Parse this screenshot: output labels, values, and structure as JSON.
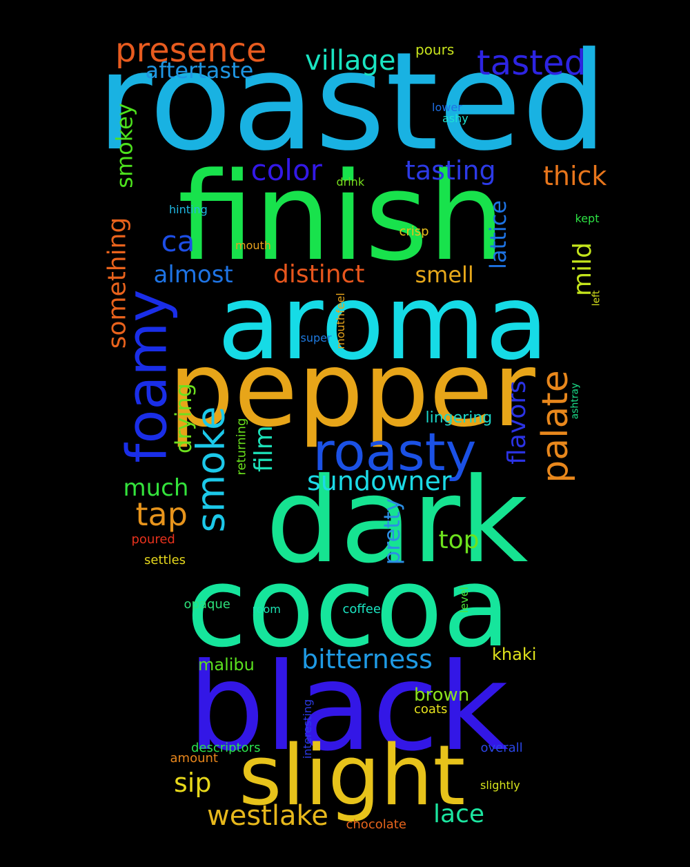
{
  "words": [
    {
      "text": "roasted",
      "color": "#19b2e2",
      "rot": 0
    },
    {
      "text": "finish",
      "color": "#18e24c",
      "rot": 0
    },
    {
      "text": "aroma",
      "color": "#16dbe6",
      "rot": 0
    },
    {
      "text": "pepper",
      "color": "#e7a519",
      "rot": 0
    },
    {
      "text": "dark",
      "color": "#16e391",
      "rot": 0
    },
    {
      "text": "cocoa",
      "color": "#16e59c",
      "rot": 0
    },
    {
      "text": "black",
      "color": "#3317e6",
      "rot": 0
    },
    {
      "text": "slight",
      "color": "#e7c31b",
      "rot": 0
    },
    {
      "text": "roasty",
      "color": "#1b51e5",
      "rot": 0
    },
    {
      "text": "foamy",
      "color": "#1a2ee8",
      "rot": -90
    },
    {
      "text": "smoke",
      "color": "#1cc8e9",
      "rot": -90
    },
    {
      "text": "palate",
      "color": "#e8871c",
      "rot": -90
    },
    {
      "text": "presence",
      "color": "#e75b1f",
      "rot": 0
    },
    {
      "text": "tasted",
      "color": "#2d24e2",
      "rot": 0
    },
    {
      "text": "village",
      "color": "#1ae4c1",
      "rot": 0
    },
    {
      "text": "aftertaste",
      "color": "#1f96e2",
      "rot": 0
    },
    {
      "text": "color",
      "color": "#3319e6",
      "rot": 0
    },
    {
      "text": "tasting",
      "color": "#2c3ae6",
      "rot": 0
    },
    {
      "text": "thick",
      "color": "#e8761c",
      "rot": 0
    },
    {
      "text": "smokey",
      "color": "#4de21d",
      "rot": -90
    },
    {
      "text": "something",
      "color": "#e8621c",
      "rot": -90
    },
    {
      "text": "ca",
      "color": "#1d4ee5",
      "rot": 0
    },
    {
      "text": "almost",
      "color": "#1e73e3",
      "rot": 0
    },
    {
      "text": "distinct",
      "color": "#e7561d",
      "rot": 0
    },
    {
      "text": "smell",
      "color": "#e7a81b",
      "rot": 0
    },
    {
      "text": "lattice",
      "color": "#1e73e3",
      "rot": -90
    },
    {
      "text": "mild",
      "color": "#c4e51c",
      "rot": -90
    },
    {
      "text": "drying",
      "color": "#6de01e",
      "rot": -90
    },
    {
      "text": "film",
      "color": "#1ce1b8",
      "rot": -90
    },
    {
      "text": "flavors",
      "color": "#2b33e4",
      "rot": -90
    },
    {
      "text": "sundowner",
      "color": "#1cdae6",
      "rot": 0
    },
    {
      "text": "much",
      "color": "#34e33c",
      "rot": 0
    },
    {
      "text": "tap",
      "color": "#e7941c",
      "rot": 0
    },
    {
      "text": "top",
      "color": "#6de21d",
      "rot": 0
    },
    {
      "text": "pretty",
      "color": "#2b8ee4",
      "rot": -90
    },
    {
      "text": "lingering",
      "color": "#1bd6c8",
      "rot": 0
    },
    {
      "text": "bitterness",
      "color": "#1f9ae4",
      "rot": 0
    },
    {
      "text": "malibu",
      "color": "#5be01f",
      "rot": 0
    },
    {
      "text": "khaki",
      "color": "#e0e31c",
      "rot": 0
    },
    {
      "text": "brown",
      "color": "#8be21d",
      "rot": 0
    },
    {
      "text": "sip",
      "color": "#e7d81b",
      "rot": 0
    },
    {
      "text": "westlake",
      "color": "#e7b81c",
      "rot": 0
    },
    {
      "text": "lace",
      "color": "#1ce6a0",
      "rot": 0
    },
    {
      "text": "pours",
      "color": "#c7e31d",
      "rot": 0
    },
    {
      "text": "lower",
      "color": "#1f6fe3",
      "rot": 0
    },
    {
      "text": "ashy",
      "color": "#1ce3d4",
      "rot": 0
    },
    {
      "text": "drink",
      "color": "#78e01e",
      "rot": 0
    },
    {
      "text": "hinting",
      "color": "#1fb8e2",
      "rot": 0
    },
    {
      "text": "kept",
      "color": "#2de244",
      "rot": 0
    },
    {
      "text": "mouth",
      "color": "#e8a21e",
      "rot": 0
    },
    {
      "text": "crisp",
      "color": "#e8c11d",
      "rot": 0
    },
    {
      "text": "left",
      "color": "#d7e31d",
      "rot": -90
    },
    {
      "text": "mouthfeel",
      "color": "#e8a51c",
      "rot": -90
    },
    {
      "text": "super",
      "color": "#1f7be2",
      "rot": 0
    },
    {
      "text": "ashtray",
      "color": "#1be28c",
      "rot": -90
    },
    {
      "text": "returning",
      "color": "#6ae21d",
      "rot": -90
    },
    {
      "text": "poured",
      "color": "#e8321d",
      "rot": 0
    },
    {
      "text": "settles",
      "color": "#e6d81d",
      "rot": 0
    },
    {
      "text": "opaque",
      "color": "#2de27b",
      "rot": 0
    },
    {
      "text": "room",
      "color": "#1ce3b2",
      "rot": 0
    },
    {
      "text": "coffee",
      "color": "#1be5c2",
      "rot": 0
    },
    {
      "text": "level",
      "color": "#4be33b",
      "rot": -90
    },
    {
      "text": "coats",
      "color": "#e7e21d",
      "rot": 0
    },
    {
      "text": "interesting",
      "color": "#2b3ae6",
      "rot": -90
    },
    {
      "text": "descriptors",
      "color": "#2be24e",
      "rot": 0
    },
    {
      "text": "amount",
      "color": "#e8861c",
      "rot": 0
    },
    {
      "text": "overall",
      "color": "#2b46e6",
      "rot": 0
    },
    {
      "text": "slightly",
      "color": "#d7e51d",
      "rot": 0
    },
    {
      "text": "chocolate",
      "color": "#e8651c",
      "rot": 0
    }
  ]
}
